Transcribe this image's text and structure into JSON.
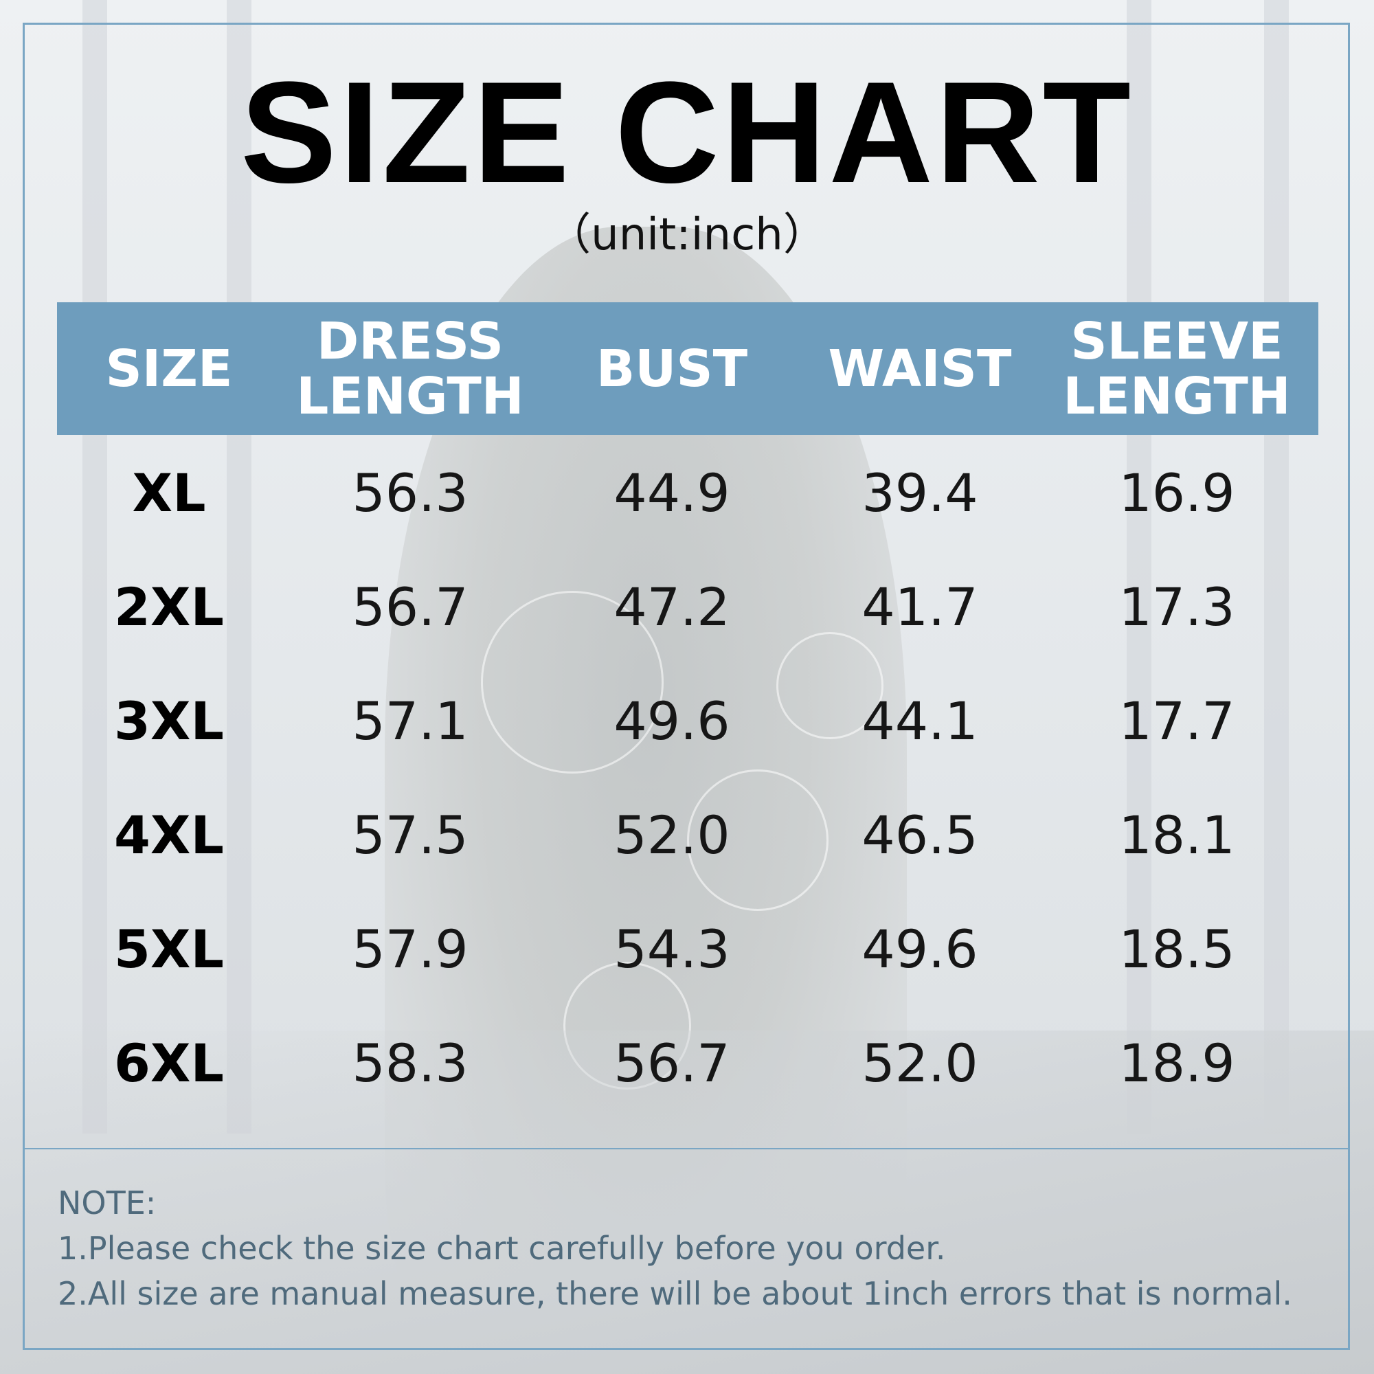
{
  "header": {
    "title": "SIZE CHART",
    "unit": "（unit:inch）"
  },
  "table": {
    "columns": [
      "SIZE",
      "DRESS\nLENGTH",
      "BUST",
      "WAIST",
      "SLEEVE\nLENGTH"
    ],
    "rows": [
      [
        "XL",
        "56.3",
        "44.9",
        "39.4",
        "16.9"
      ],
      [
        "2XL",
        "56.7",
        "47.2",
        "41.7",
        "17.3"
      ],
      [
        "3XL",
        "57.1",
        "49.6",
        "44.1",
        "17.7"
      ],
      [
        "4XL",
        "57.5",
        "52.0",
        "46.5",
        "18.1"
      ],
      [
        "5XL",
        "57.9",
        "54.3",
        "49.6",
        "18.5"
      ],
      [
        "6XL",
        "58.3",
        "56.7",
        "52.0",
        "18.9"
      ]
    ]
  },
  "notes": {
    "heading": "NOTE:",
    "line1": "1.Please check the size chart carefully before you order.",
    "line2": "2.All size are manual measure, there will be about 1inch errors that is normal."
  },
  "colors": {
    "header_bg": "#6e9dbd",
    "frame": "#7aa6c4",
    "note_text": "#4f6a7c"
  }
}
